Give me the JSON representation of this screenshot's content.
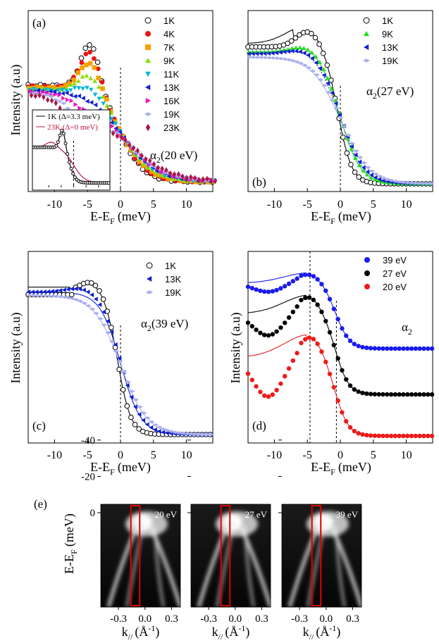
{
  "panel_a": {
    "label": "(a)",
    "annotation": "α",
    "annotation_sub": "2",
    "annotation_tail": "(20 eV)",
    "ylabel": "Intensity (a.u)",
    "xlabel_main": "E-E",
    "xlabel_sub": "F",
    "xlabel_tail": "(meV)",
    "inset_legend": [
      {
        "label": "1K (Δ=3.3 meV)",
        "color": "#000000"
      },
      {
        "label": "23K (Δ=0 meV)",
        "color": "#c0143c"
      }
    ]
  },
  "panel_b": {
    "label": "(b)",
    "annotation": "α",
    "annotation_sub": "2",
    "annotation_tail": "(27 eV)",
    "xlabel_main": "E-E",
    "xlabel_sub": "F",
    "xlabel_tail": "(meV)"
  },
  "panel_c": {
    "label": "(c)",
    "annotation": "α",
    "annotation_sub": "2",
    "annotation_tail": "(39 eV)",
    "ylabel": "Intensity (a.u)",
    "xlabel_main": "E-E",
    "xlabel_sub": "F",
    "xlabel_tail": "(meV)"
  },
  "panel_d": {
    "label": "(d)",
    "annotation": "α",
    "annotation_sub": "2",
    "ylabel": "Intensity (a.u)",
    "xlabel_main": "E-E",
    "xlabel_sub": "F",
    "xlabel_tail": "(meV)"
  },
  "panel_e": {
    "label": "(e)",
    "ylabel_main": "E-E",
    "ylabel_sub": "F",
    "ylabel_tail": "(meV)",
    "xlabel_main": "k",
    "xlabel_sub": "//",
    "xlabel_tail": "(Å",
    "xlabel_sup": "-1",
    "xlabel_close": ")",
    "images": [
      {
        "label": "20 eV"
      },
      {
        "label": "27 eV"
      },
      {
        "label": "39 eV"
      }
    ],
    "xticks": [
      "-0.3",
      "0.0",
      "0.3"
    ],
    "yticks": [
      "0",
      "-20",
      "-40"
    ],
    "colors": {
      "box": "#e00000"
    }
  },
  "chart_data": [
    {
      "type": "scatter",
      "panel": "a",
      "xlabel": "E-EF (meV)",
      "ylabel": "Intensity (a.u)",
      "xlim": [
        -14,
        14
      ],
      "xticks": [
        -10,
        -5,
        0,
        5,
        10
      ],
      "series": [
        {
          "name": "1K",
          "color": "#000000",
          "marker": "open-circle",
          "peak": 4.6,
          "peak_x": -4.5
        },
        {
          "name": "4K",
          "color": "#ee1111",
          "marker": "circle",
          "peak": 4.4,
          "peak_x": -4.5
        },
        {
          "name": "7K",
          "color": "#f5a000",
          "marker": "square",
          "peak": 4.1,
          "peak_x": -4.5
        },
        {
          "name": "9K",
          "color": "#88dd00",
          "marker": "triangle-up",
          "peak": 3.7,
          "peak_x": -4.5
        },
        {
          "name": "11K",
          "color": "#00b8d8",
          "marker": "triangle-down",
          "peak": 3.3,
          "peak_x": -4.5
        },
        {
          "name": "13K",
          "color": "#1020d0",
          "marker": "triangle-left",
          "peak": 2.9,
          "peak_x": -4.6
        },
        {
          "name": "16K",
          "color": "#f010c0",
          "marker": "triangle-right",
          "peak": 2.5,
          "peak_x": -4.8
        },
        {
          "name": "19K",
          "color": "#aab0ee",
          "marker": "diamond-flat",
          "peak": 2.1,
          "peak_x": -5.2
        },
        {
          "name": "23K",
          "color": "#aa1844",
          "marker": "diamond",
          "peak": 1.9,
          "peak_x": -5.6
        }
      ]
    },
    {
      "type": "scatter",
      "panel": "b",
      "xlabel": "E-EF (meV)",
      "xlim": [
        -14,
        14
      ],
      "xticks": [
        -10,
        -5,
        0,
        5,
        10
      ],
      "series": [
        {
          "name": "1K",
          "color": "#000000",
          "marker": "open-circle",
          "peak": 4.6
        },
        {
          "name": "9K",
          "color": "#22dd22",
          "marker": "triangle-up",
          "peak": 3.7
        },
        {
          "name": "13K",
          "color": "#1020d0",
          "marker": "triangle-left",
          "peak": 3.5
        },
        {
          "name": "19K",
          "color": "#aab0ee",
          "marker": "diamond-flat",
          "peak": 3.2
        }
      ]
    },
    {
      "type": "scatter",
      "panel": "c",
      "xlabel": "E-EF (meV)",
      "ylabel": "Intensity (a.u)",
      "xlim": [
        -14,
        14
      ],
      "xticks": [
        -10,
        -5,
        0,
        5,
        10
      ],
      "series": [
        {
          "name": "1K",
          "color": "#000000",
          "marker": "open-circle",
          "peak": 4.6
        },
        {
          "name": "13K",
          "color": "#1020d0",
          "marker": "triangle-left",
          "peak": 4.0
        },
        {
          "name": "19K",
          "color": "#aab0ee",
          "marker": "diamond-flat",
          "peak": 3.8
        }
      ]
    },
    {
      "type": "scatter",
      "panel": "d",
      "xlabel": "E-EF (meV)",
      "ylabel": "Intensity (a.u)",
      "xlim": [
        -14,
        14
      ],
      "xticks": [
        -10,
        -5,
        0,
        5,
        10
      ],
      "series": [
        {
          "name": "39 eV",
          "color": "#1a1aee",
          "marker": "circle",
          "offset": 2.0
        },
        {
          "name": "27 eV",
          "color": "#000000",
          "marker": "circle",
          "offset": 1.0
        },
        {
          "name": "20 eV",
          "color": "#ee1a1a",
          "marker": "circle",
          "offset": 0.0
        }
      ]
    }
  ]
}
